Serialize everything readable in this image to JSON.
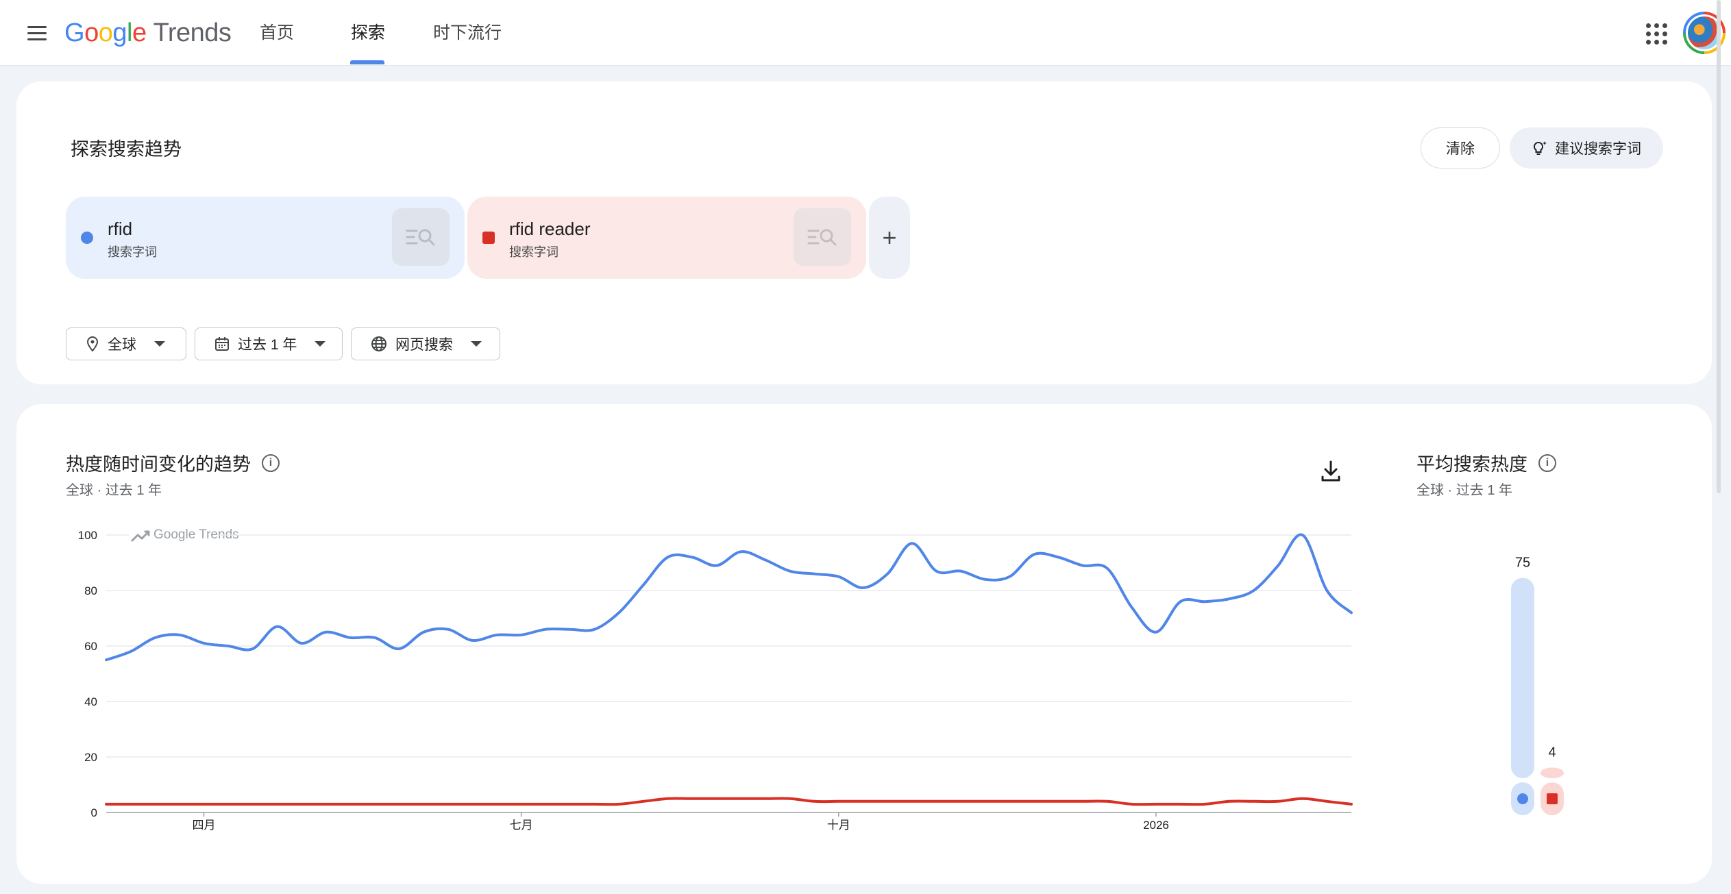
{
  "header": {
    "logo_text": "Google",
    "product": "Trends",
    "tabs": [
      {
        "label": "首页"
      },
      {
        "label": "探索"
      },
      {
        "label": "时下流行"
      }
    ]
  },
  "explore": {
    "title": "探索搜索趋势",
    "clear_label": "清除",
    "suggest_label": "建议搜索字词",
    "terms": [
      {
        "name": "rfid",
        "sub": "搜索字词",
        "color": "#4f86e8"
      },
      {
        "name": "rfid reader",
        "sub": "搜索字词",
        "color": "#d93025"
      }
    ],
    "add_label": "+",
    "filters": {
      "geo": "全球",
      "time": "过去 1 年",
      "property": "网页搜索"
    }
  },
  "interest_over_time": {
    "title": "热度随时间变化的趋势",
    "subtitle": "全球 · 过去 1 年",
    "watermark": "Google Trends"
  },
  "average": {
    "title": "平均搜索热度",
    "subtitle": "全球 · 过去 1 年"
  },
  "chart_data": [
    {
      "type": "line",
      "y_ticks": [
        0,
        20,
        40,
        60,
        80,
        100
      ],
      "ylim": [
        0,
        100
      ],
      "x_labels": [
        "四月",
        "七月",
        "十月",
        "2026"
      ],
      "x_label_weeks": [
        4,
        17,
        30,
        43
      ],
      "grid": true,
      "series": [
        {
          "name": "rfid",
          "color": "#4f86e8",
          "values": [
            55,
            58,
            63,
            64,
            61,
            60,
            59,
            67,
            61,
            65,
            63,
            63,
            59,
            65,
            66,
            62,
            64,
            64,
            66,
            66,
            66,
            72,
            82,
            92,
            92,
            89,
            94,
            91,
            87,
            86,
            85,
            81,
            86,
            97,
            87,
            87,
            84,
            85,
            93,
            92,
            89,
            88,
            74,
            65,
            76,
            76,
            77,
            80,
            89,
            100,
            80,
            72
          ]
        },
        {
          "name": "rfid reader",
          "color": "#d93025",
          "values": [
            3,
            3,
            3,
            3,
            3,
            3,
            3,
            3,
            3,
            3,
            3,
            3,
            3,
            3,
            3,
            3,
            3,
            3,
            3,
            3,
            3,
            3,
            4,
            5,
            5,
            5,
            5,
            5,
            5,
            4,
            4,
            4,
            4,
            4,
            4,
            4,
            4,
            4,
            4,
            4,
            4,
            4,
            3,
            3,
            3,
            3,
            4,
            4,
            4,
            5,
            4,
            3
          ]
        }
      ]
    },
    {
      "type": "bar",
      "categories": [
        "rfid",
        "rfid reader"
      ],
      "values": [
        75,
        4
      ],
      "colors": [
        "#4f86e8",
        "#d93025"
      ]
    }
  ]
}
